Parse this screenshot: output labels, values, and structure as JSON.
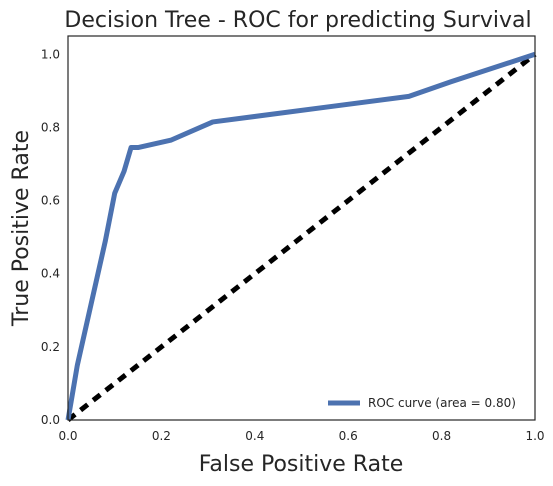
{
  "chart_data": {
    "type": "line",
    "title": "Decision Tree - ROC for predicting Survival",
    "xlabel": "False Positive Rate",
    "ylabel": "True Positive Rate",
    "xlim": [
      0.0,
      1.0
    ],
    "ylim": [
      0.0,
      1.05
    ],
    "xticks": [
      0.0,
      0.2,
      0.4,
      0.6,
      0.8,
      1.0
    ],
    "xtick_labels": [
      "0.0",
      "0.2",
      "0.4",
      "0.6",
      "0.8",
      "1.0"
    ],
    "yticks": [
      0.0,
      0.2,
      0.4,
      0.6,
      0.8,
      1.0
    ],
    "ytick_labels": [
      "0.0",
      "0.2",
      "0.4",
      "0.6",
      "0.8",
      "1.0"
    ],
    "grid": false,
    "legend_position": "bottom-right",
    "series": [
      {
        "name": "ROC curve (area = 0.80)",
        "color": "#4c72b0",
        "style": "solid",
        "x": [
          0.0,
          0.02,
          0.05,
          0.08,
          0.1,
          0.12,
          0.135,
          0.15,
          0.22,
          0.31,
          0.55,
          0.73,
          0.82,
          1.0
        ],
        "y": [
          0.0,
          0.15,
          0.32,
          0.49,
          0.62,
          0.68,
          0.745,
          0.745,
          0.765,
          0.815,
          0.855,
          0.885,
          0.925,
          1.0
        ]
      },
      {
        "name": "",
        "color": "#000000",
        "style": "dashed",
        "x": [
          0.0,
          1.0
        ],
        "y": [
          0.0,
          1.0
        ]
      }
    ]
  }
}
